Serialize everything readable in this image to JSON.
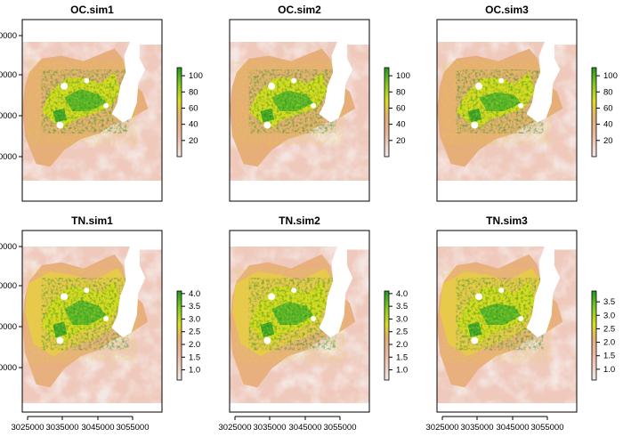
{
  "chart_data": {
    "type": "heatmap",
    "layout": {
      "rows": 2,
      "cols": 3
    },
    "x_ticks": [
      "3025000",
      "3035000",
      "3045000",
      "3055000"
    ],
    "y_ticks": [
      "0000",
      "0000",
      "0000",
      "0000"
    ],
    "colors": {
      "ramp": [
        "#f2e8e6",
        "#ecb8a0",
        "#e6b070",
        "#dddd22",
        "#88cc22",
        "#229922"
      ],
      "nodata": "#ffffff",
      "frame": "#000000"
    },
    "panels": [
      {
        "title": "OC.sim1",
        "variable": "OC",
        "legend_ticks": [
          20,
          40,
          60,
          80,
          100
        ],
        "legend_range": [
          0,
          110
        ]
      },
      {
        "title": "OC.sim2",
        "variable": "OC",
        "legend_ticks": [
          20,
          40,
          60,
          80,
          100
        ],
        "legend_range": [
          0,
          110
        ]
      },
      {
        "title": "OC.sim3",
        "variable": "OC",
        "legend_ticks": [
          20,
          40,
          60,
          80,
          100
        ],
        "legend_range": [
          0,
          110
        ]
      },
      {
        "title": "TN.sim1",
        "variable": "TN",
        "legend_ticks": [
          "1.0",
          "1.5",
          "2.0",
          "2.5",
          "3.0",
          "3.5",
          "4.0"
        ],
        "legend_range": [
          0.6,
          4.1
        ]
      },
      {
        "title": "TN.sim2",
        "variable": "TN",
        "legend_ticks": [
          "1.0",
          "1.5",
          "2.0",
          "2.5",
          "3.0",
          "3.5",
          "4.0"
        ],
        "legend_range": [
          0.6,
          4.1
        ]
      },
      {
        "title": "TN.sim3",
        "variable": "TN",
        "legend_ticks": [
          "1.0",
          "1.5",
          "2.0",
          "2.5",
          "3.0",
          "3.5"
        ],
        "legend_range": [
          0.6,
          3.9
        ]
      }
    ]
  }
}
